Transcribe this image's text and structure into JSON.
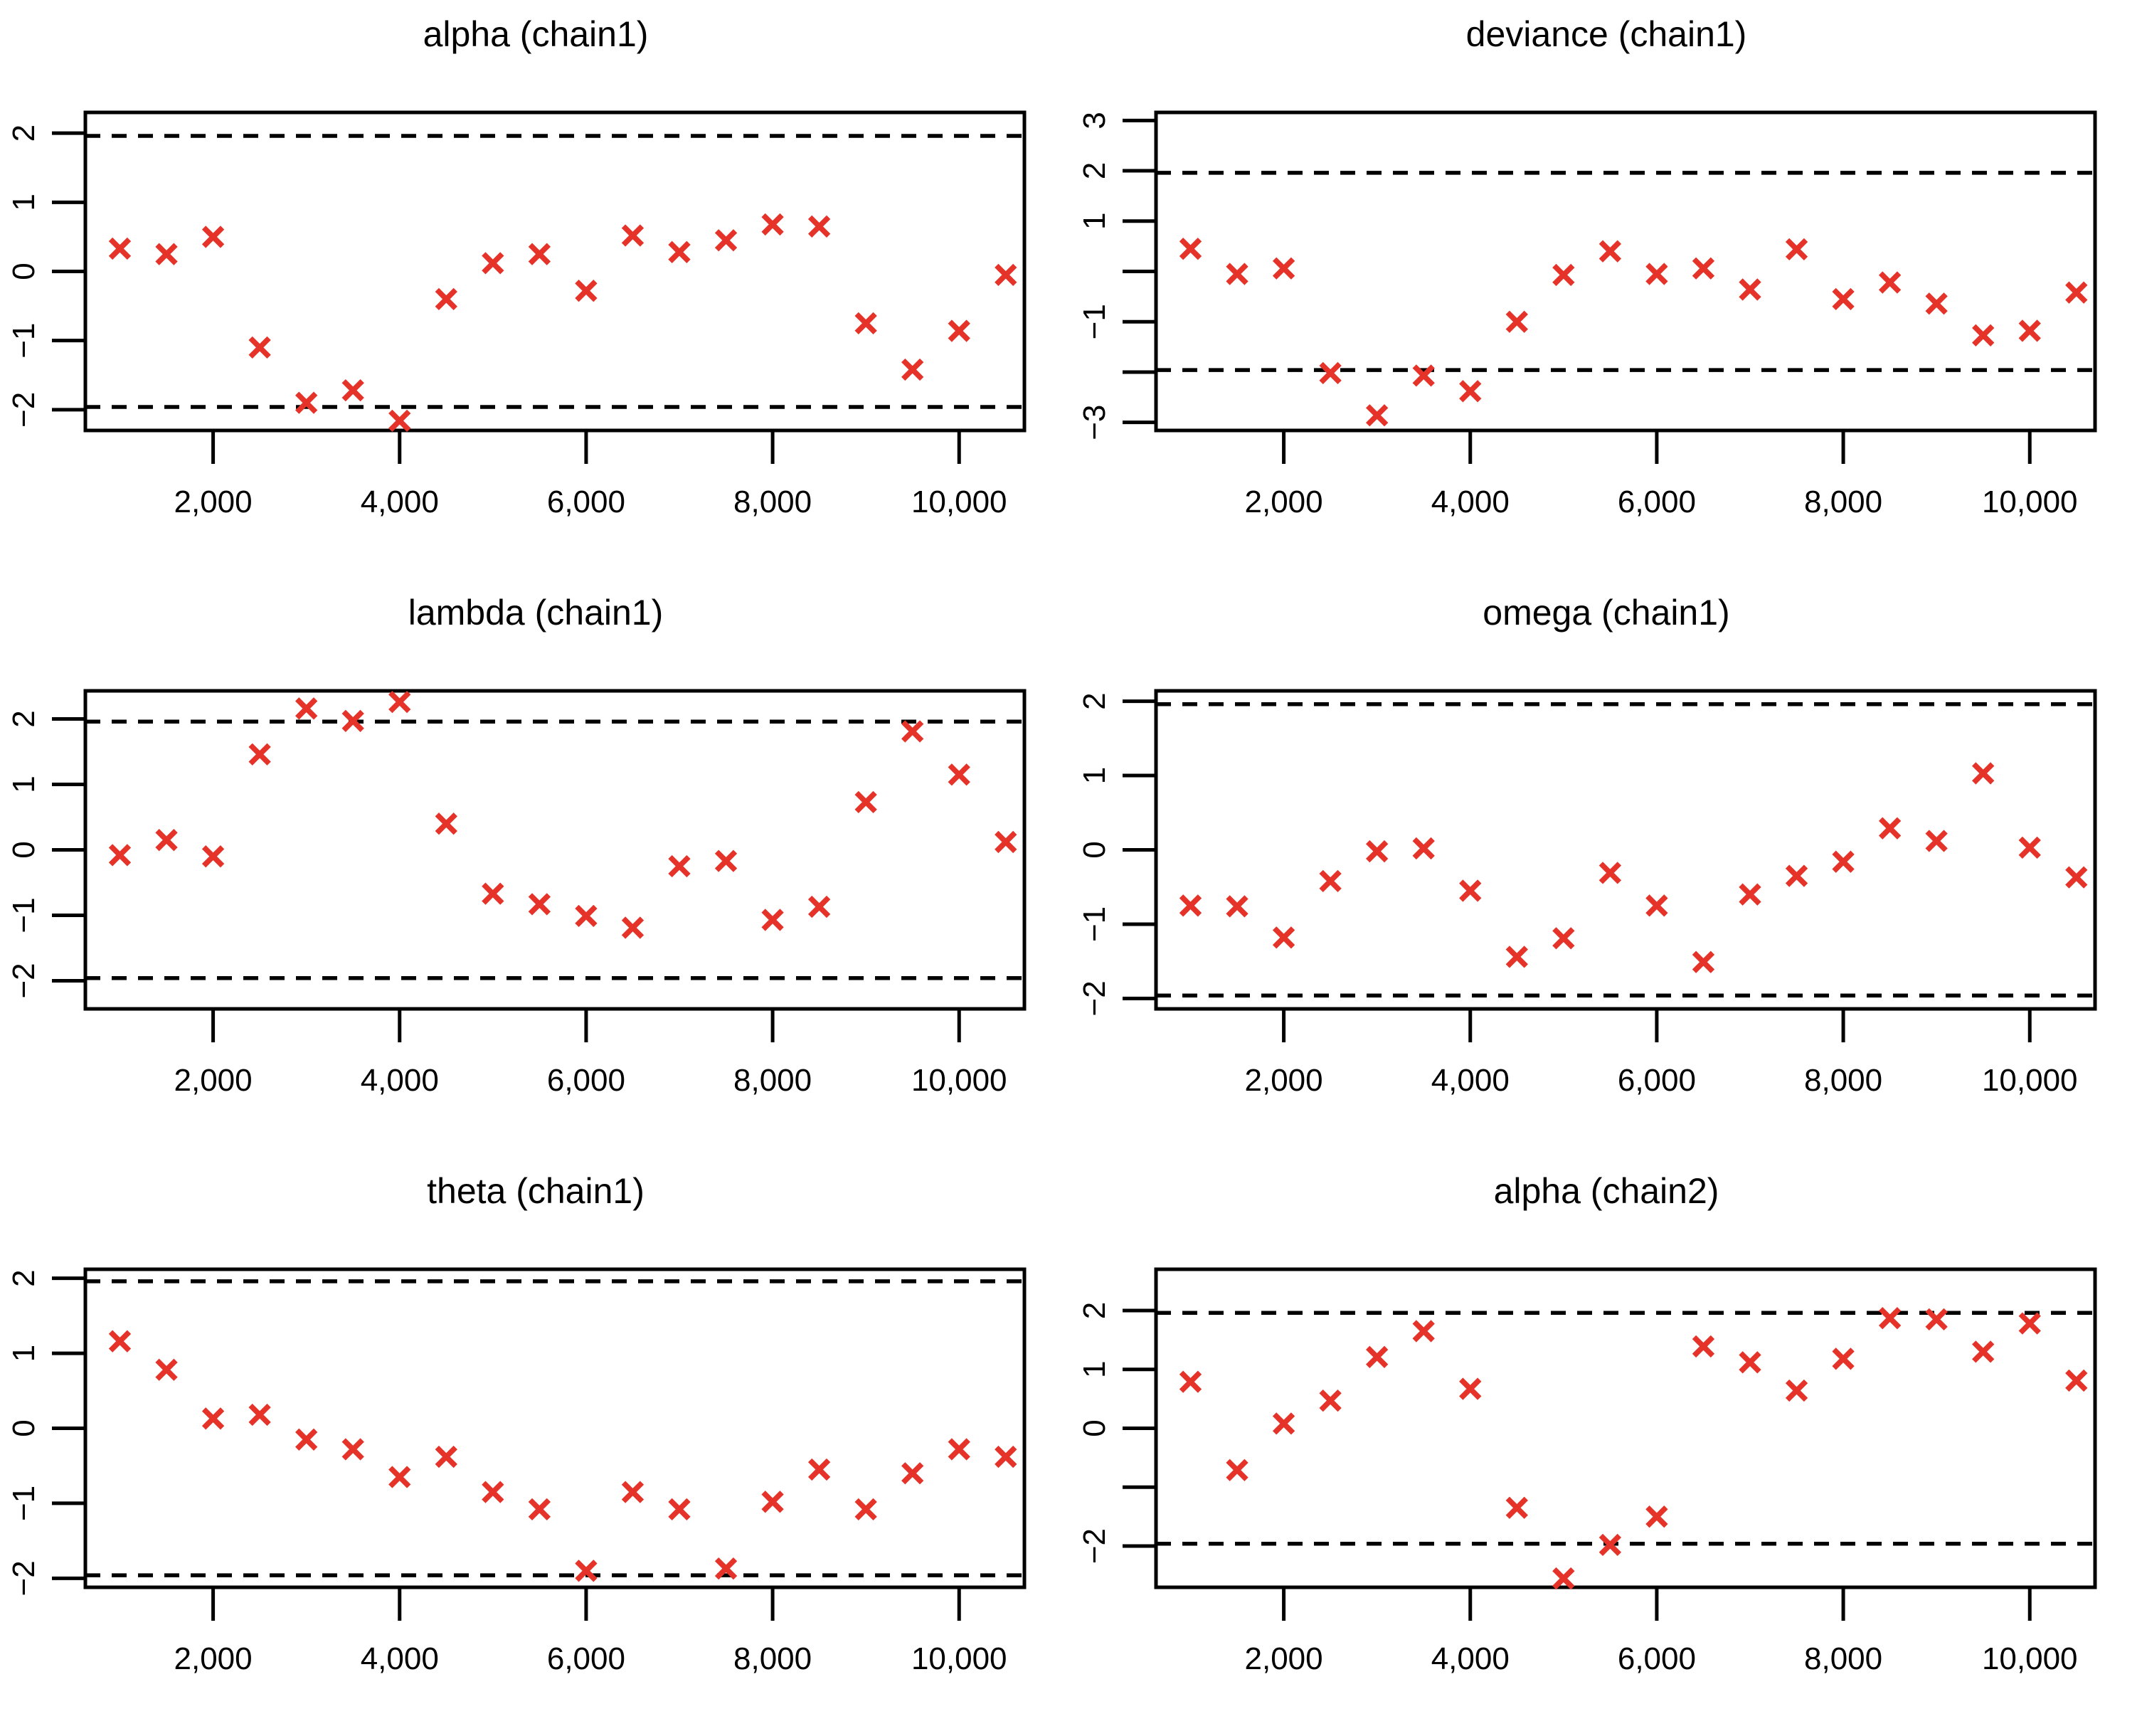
{
  "figure": {
    "background": "#ffffff",
    "axis_color": "#000000",
    "marker_color": "#e5332a",
    "marker_symbol": "x",
    "confidence_band": 1.96
  },
  "chart_data": [
    {
      "type": "scatter",
      "title": "alpha (chain1)",
      "x": [
        1000,
        1500,
        2000,
        2500,
        3000,
        3500,
        4000,
        4500,
        5000,
        5500,
        6000,
        6500,
        7000,
        7500,
        8000,
        8500,
        9000,
        9500,
        10000,
        10500
      ],
      "y": [
        0.33,
        0.25,
        0.5,
        -1.1,
        -1.9,
        -1.72,
        -2.16,
        -0.4,
        0.12,
        0.25,
        -0.28,
        0.52,
        0.28,
        0.45,
        0.68,
        0.65,
        -0.75,
        -1.42,
        -0.86,
        -0.05
      ],
      "xlim": [
        630,
        10700
      ],
      "ylim": [
        -2.3,
        2.3
      ],
      "xticks": {
        "values": [
          2000,
          4000,
          6000,
          8000,
          10000
        ],
        "labels": [
          "2,000",
          "4,000",
          "6,000",
          "8,000",
          "10,000"
        ]
      },
      "yticks": {
        "values": [
          2,
          1,
          0,
          -1,
          -2
        ],
        "labels": [
          "2",
          "1",
          "0",
          "−1",
          "−2"
        ]
      },
      "hlines": [
        1.96,
        -1.96
      ]
    },
    {
      "type": "scatter",
      "title": "deviance (chain1)",
      "x": [
        1000,
        1500,
        2000,
        2500,
        3000,
        3500,
        4000,
        4500,
        5000,
        5500,
        6000,
        6500,
        7000,
        7500,
        8000,
        8500,
        9000,
        9500,
        10000,
        10500
      ],
      "y": [
        0.45,
        -0.05,
        0.06,
        -2.02,
        -2.86,
        -2.07,
        -2.38,
        -1.0,
        -0.07,
        0.4,
        -0.05,
        0.06,
        -0.36,
        0.44,
        -0.55,
        -0.22,
        -0.64,
        -1.27,
        -1.18,
        -0.42
      ],
      "xlim": [
        630,
        10700
      ],
      "ylim": [
        -3.16,
        3.16
      ],
      "xticks": {
        "values": [
          2000,
          4000,
          6000,
          8000,
          10000
        ],
        "labels": [
          "2,000",
          "4,000",
          "6,000",
          "8,000",
          "10,000"
        ]
      },
      "yticks": {
        "values": [
          3,
          2,
          1,
          0,
          -1,
          -2,
          -3
        ],
        "labels": [
          "3",
          "2",
          "1",
          "",
          "−1",
          "",
          "−3"
        ]
      },
      "hlines": [
        1.96,
        -1.96
      ]
    },
    {
      "type": "scatter",
      "title": "lambda (chain1)",
      "x": [
        1000,
        1500,
        2000,
        2500,
        3000,
        3500,
        4000,
        4500,
        5000,
        5500,
        6000,
        6500,
        7000,
        7500,
        8000,
        8500,
        9000,
        9500,
        10000,
        10500
      ],
      "y": [
        -0.08,
        0.15,
        -0.1,
        1.46,
        2.16,
        1.97,
        2.26,
        0.4,
        -0.67,
        -0.83,
        -1.01,
        -1.19,
        -0.25,
        -0.17,
        -1.07,
        -0.87,
        0.73,
        1.81,
        1.15,
        0.12
      ],
      "xlim": [
        630,
        10700
      ],
      "ylim": [
        -2.43,
        2.43
      ],
      "xticks": {
        "values": [
          2000,
          4000,
          6000,
          8000,
          10000
        ],
        "labels": [
          "2,000",
          "4,000",
          "6,000",
          "8,000",
          "10,000"
        ]
      },
      "yticks": {
        "values": [
          2,
          1,
          0,
          -1,
          -2
        ],
        "labels": [
          "2",
          "1",
          "0",
          "−1",
          "−2"
        ]
      },
      "hlines": [
        1.96,
        -1.96
      ]
    },
    {
      "type": "scatter",
      "title": "omega (chain1)",
      "x": [
        1000,
        1500,
        2000,
        2500,
        3000,
        3500,
        4000,
        4500,
        5000,
        5500,
        6000,
        6500,
        7000,
        7500,
        8000,
        8500,
        9000,
        9500,
        10000,
        10500
      ],
      "y": [
        -0.75,
        -0.76,
        -1.18,
        -0.42,
        -0.02,
        0.02,
        -0.55,
        -1.44,
        -1.19,
        -0.31,
        -0.75,
        -1.51,
        -0.6,
        -0.35,
        -0.16,
        0.29,
        0.12,
        1.03,
        0.03,
        -0.37
      ],
      "xlim": [
        630,
        10700
      ],
      "ylim": [
        -2.14,
        2.14
      ],
      "xticks": {
        "values": [
          2000,
          4000,
          6000,
          8000,
          10000
        ],
        "labels": [
          "2,000",
          "4,000",
          "6,000",
          "8,000",
          "10,000"
        ]
      },
      "yticks": {
        "values": [
          2,
          1,
          0,
          -1,
          -2
        ],
        "labels": [
          "2",
          "1",
          "0",
          "−1",
          "−2"
        ]
      },
      "hlines": [
        1.96,
        -1.96
      ]
    },
    {
      "type": "scatter",
      "title": "theta (chain1)",
      "x": [
        1000,
        1500,
        2000,
        2500,
        3000,
        3500,
        4000,
        4500,
        5000,
        5500,
        6000,
        6500,
        7000,
        7500,
        8000,
        8500,
        9000,
        9500,
        10000,
        10500
      ],
      "y": [
        1.16,
        0.78,
        0.13,
        0.18,
        -0.15,
        -0.28,
        -0.65,
        -0.38,
        -0.85,
        -1.08,
        -1.9,
        -0.85,
        -1.08,
        -1.87,
        -0.98,
        -0.55,
        -1.08,
        -0.6,
        -0.28,
        -0.38
      ],
      "xlim": [
        630,
        10700
      ],
      "ylim": [
        -2.12,
        2.12
      ],
      "xticks": {
        "values": [
          2000,
          4000,
          6000,
          8000,
          10000
        ],
        "labels": [
          "2,000",
          "4,000",
          "6,000",
          "8,000",
          "10,000"
        ]
      },
      "yticks": {
        "values": [
          2,
          1,
          0,
          -1,
          -2
        ],
        "labels": [
          "2",
          "1",
          "0",
          "−1",
          "−2"
        ]
      },
      "hlines": [
        1.96,
        -1.96
      ]
    },
    {
      "type": "scatter",
      "title": "alpha (chain2)",
      "x": [
        1000,
        1500,
        2000,
        2500,
        3000,
        3500,
        4000,
        4500,
        5000,
        5500,
        6000,
        6500,
        7000,
        7500,
        8000,
        8500,
        9000,
        9500,
        10000,
        10500
      ],
      "y": [
        0.79,
        -0.71,
        0.08,
        0.47,
        1.21,
        1.65,
        0.67,
        -1.35,
        -2.55,
        -1.98,
        -1.5,
        1.39,
        1.12,
        0.64,
        1.18,
        1.87,
        1.85,
        1.3,
        1.78,
        0.81
      ],
      "xlim": [
        630,
        10700
      ],
      "ylim": [
        -2.7,
        2.7
      ],
      "xticks": {
        "values": [
          2000,
          4000,
          6000,
          8000,
          10000
        ],
        "labels": [
          "2,000",
          "4,000",
          "6,000",
          "8,000",
          "10,000"
        ]
      },
      "yticks": {
        "values": [
          2,
          1,
          0,
          -1,
          -2
        ],
        "labels": [
          "2",
          "1",
          "0",
          "",
          "−2"
        ]
      },
      "hlines": [
        1.96,
        -1.96
      ]
    }
  ]
}
